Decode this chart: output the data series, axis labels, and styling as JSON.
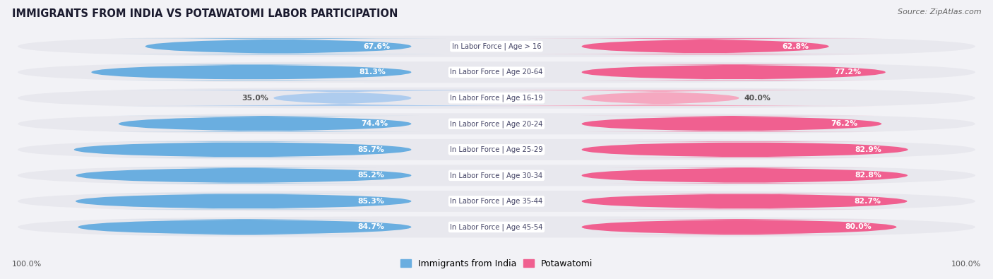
{
  "title": "IMMIGRANTS FROM INDIA VS POTAWATOMI LABOR PARTICIPATION",
  "source": "Source: ZipAtlas.com",
  "categories": [
    "In Labor Force | Age > 16",
    "In Labor Force | Age 20-64",
    "In Labor Force | Age 16-19",
    "In Labor Force | Age 20-24",
    "In Labor Force | Age 25-29",
    "In Labor Force | Age 30-34",
    "In Labor Force | Age 35-44",
    "In Labor Force | Age 45-54"
  ],
  "india_values": [
    67.6,
    81.3,
    35.0,
    74.4,
    85.7,
    85.2,
    85.3,
    84.7
  ],
  "potawatomi_values": [
    62.8,
    77.2,
    40.0,
    76.2,
    82.9,
    82.8,
    82.7,
    80.0
  ],
  "india_color_full": "#6aaee0",
  "india_color_light": "#aeccee",
  "potawatomi_color_full": "#f06090",
  "potawatomi_color_light": "#f5a8c0",
  "row_bg_color": "#e8e8ee",
  "label_color_white": "#ffffff",
  "label_color_dark": "#555555",
  "max_value": 100.0,
  "legend_india": "Immigrants from India",
  "legend_potawatomi": "Potawatomi",
  "background_color": "#f2f2f6",
  "center_label_color": "#444466",
  "threshold": 50
}
